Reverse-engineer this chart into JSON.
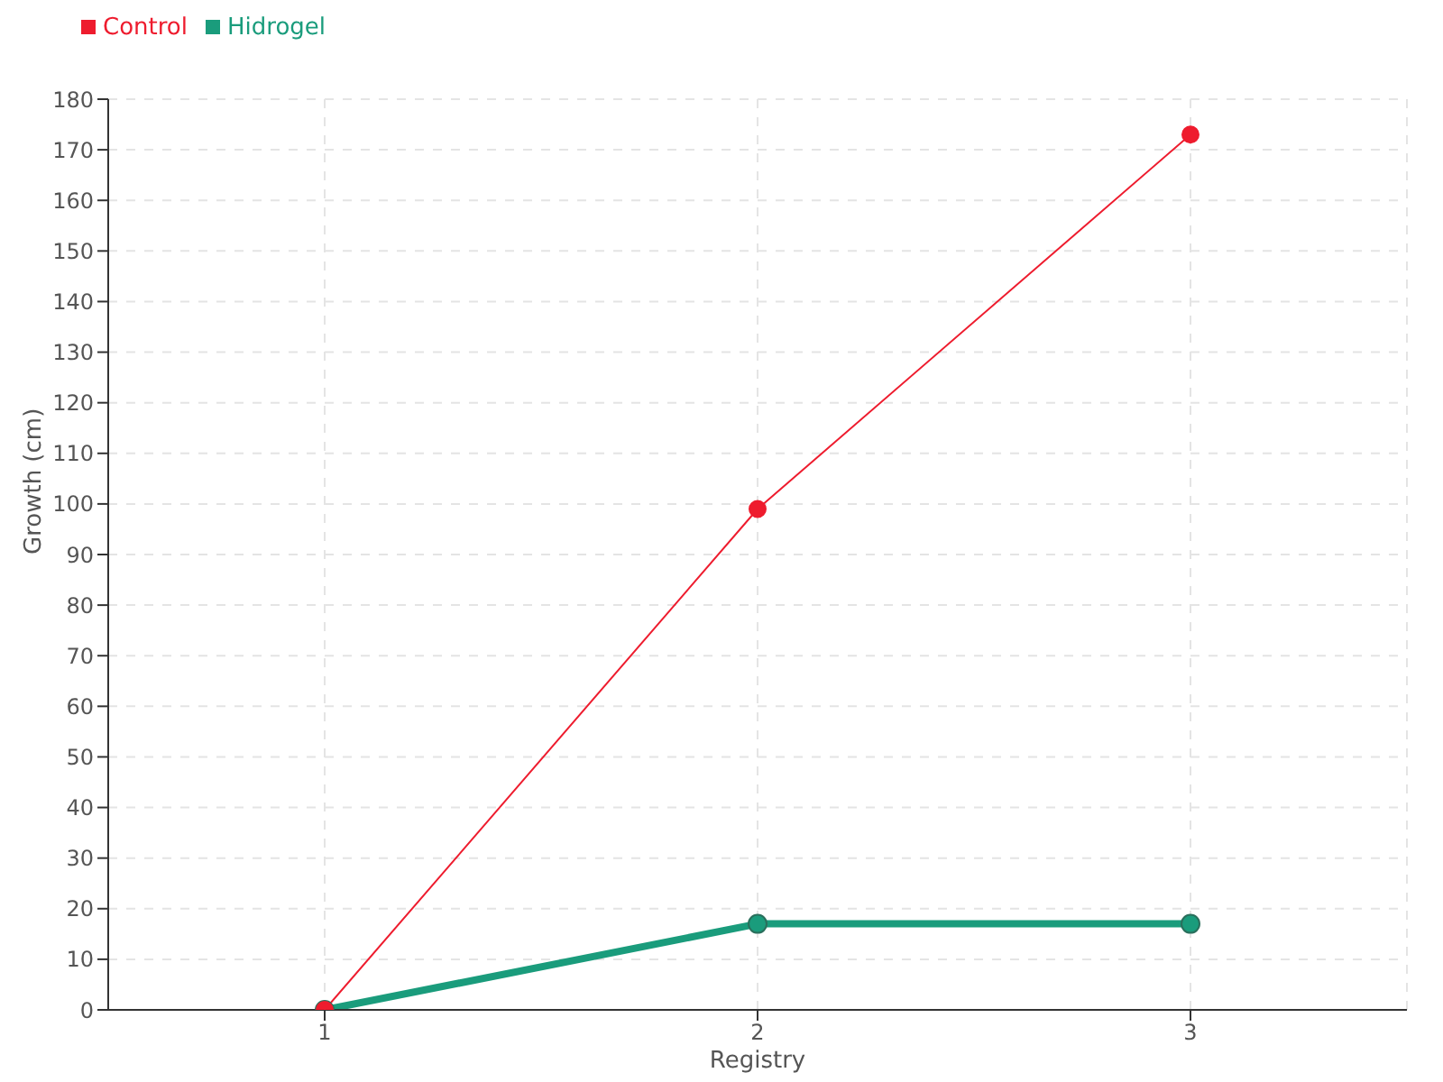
{
  "chart_data": {
    "type": "line",
    "xlabel": "Registry",
    "ylabel": "Growth (cm)",
    "x": [
      1,
      2,
      3
    ],
    "series": [
      {
        "name": "Hidrogel",
        "color": "#1a9c7c",
        "values": [
          0,
          17,
          17
        ]
      },
      {
        "name": "Control",
        "color": "#ee1c2e",
        "values": [
          0,
          99,
          173
        ]
      }
    ],
    "xlim": [
      0.5,
      3.5
    ],
    "xticks": [
      1,
      2,
      3
    ],
    "ylim": [
      0,
      180
    ],
    "yticks": [
      0,
      10,
      20,
      30,
      40,
      50,
      60,
      70,
      80,
      90,
      100,
      110,
      120,
      130,
      140,
      150,
      160,
      170,
      180
    ],
    "grid": true,
    "legend": "top left",
    "marker": "circle",
    "line_style": "solid"
  }
}
